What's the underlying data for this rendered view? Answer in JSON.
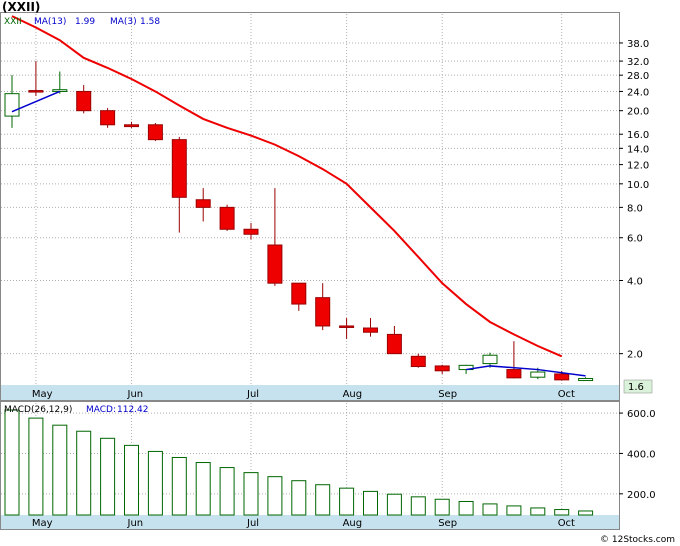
{
  "title": "(XXII)",
  "watermark": "© 12Stocks.com",
  "colors": {
    "down": "#ee0000",
    "up": "#ffffff",
    "ma13": "#ee0000",
    "ma3": "#0000cc",
    "macd_bar": "#006600",
    "axis_band": "#c6e2ee",
    "grid": "#b0b0b0"
  },
  "chart_data": [
    {
      "type": "candlestick",
      "ticker": "XXII",
      "legend": [
        {
          "label": "XXII",
          "color": "#006600"
        },
        {
          "label": "MA(13)",
          "value": "1.99",
          "color": "#0000cc"
        },
        {
          "label": "MA(3)",
          "value": "1.58",
          "color": "#0000cc"
        }
      ],
      "y_scale": "log",
      "ylim": [
        1.5,
        50
      ],
      "y_ticks": [
        "38.0",
        "32.0",
        "28.0",
        "24.0",
        "20.0",
        "16.0",
        "14.0",
        "12.0",
        "10.0",
        "8.0",
        "6.0",
        "4.0",
        "2.0"
      ],
      "last_price": "1.6",
      "x_labels": [
        "May",
        "Jun",
        "Jul",
        "Aug",
        "Sep",
        "Oct"
      ],
      "candles": [
        {
          "o": 19.0,
          "h": 28.0,
          "l": 17.0,
          "c": 23.5
        },
        {
          "o": 24.2,
          "h": 32.0,
          "l": 23.0,
          "c": 24.0
        },
        {
          "o": 24.0,
          "h": 29.0,
          "l": 23.5,
          "c": 24.4
        },
        {
          "o": 24.0,
          "h": 25.5,
          "l": 19.5,
          "c": 20.0
        },
        {
          "o": 20.0,
          "h": 20.5,
          "l": 17.0,
          "c": 17.5
        },
        {
          "o": 17.5,
          "h": 18.0,
          "l": 17.0,
          "c": 17.2
        },
        {
          "o": 17.5,
          "h": 17.8,
          "l": 15.0,
          "c": 15.2
        },
        {
          "o": 15.2,
          "h": 15.6,
          "l": 6.3,
          "c": 8.8
        },
        {
          "o": 8.6,
          "h": 9.6,
          "l": 7.0,
          "c": 8.0
        },
        {
          "o": 8.0,
          "h": 8.2,
          "l": 6.4,
          "c": 6.5
        },
        {
          "o": 6.5,
          "h": 6.9,
          "l": 5.9,
          "c": 6.2
        },
        {
          "o": 5.6,
          "h": 9.6,
          "l": 3.8,
          "c": 3.9
        },
        {
          "o": 3.9,
          "h": 3.9,
          "l": 3.0,
          "c": 3.2
        },
        {
          "o": 3.4,
          "h": 3.9,
          "l": 2.5,
          "c": 2.6
        },
        {
          "o": 2.6,
          "h": 2.8,
          "l": 2.3,
          "c": 2.57
        },
        {
          "o": 2.55,
          "h": 2.8,
          "l": 2.35,
          "c": 2.45
        },
        {
          "o": 2.4,
          "h": 2.6,
          "l": 2.0,
          "c": 2.0
        },
        {
          "o": 1.95,
          "h": 2.0,
          "l": 1.75,
          "c": 1.77
        },
        {
          "o": 1.78,
          "h": 1.8,
          "l": 1.65,
          "c": 1.7
        },
        {
          "o": 1.72,
          "h": 1.8,
          "l": 1.65,
          "c": 1.79
        },
        {
          "o": 1.82,
          "h": 2.02,
          "l": 1.75,
          "c": 1.97
        },
        {
          "o": 1.72,
          "h": 2.25,
          "l": 1.58,
          "c": 1.59
        },
        {
          "o": 1.6,
          "h": 1.75,
          "l": 1.57,
          "c": 1.68
        },
        {
          "o": 1.65,
          "h": 1.7,
          "l": 1.55,
          "c": 1.56
        },
        {
          "o": 1.55,
          "h": 1.6,
          "l": 1.55,
          "c": 1.58
        }
      ],
      "ma13": [
        49,
        44,
        39,
        33,
        30,
        27,
        24,
        21,
        18.5,
        17,
        15.8,
        14.5,
        13,
        11.5,
        10,
        8,
        6.4,
        5,
        3.9,
        3.2,
        2.7,
        2.4,
        2.15,
        1.95
      ],
      "ma3": [
        {
          "i": 0,
          "v": 19.8
        },
        {
          "i": 2,
          "v": 24.0
        }
      ],
      "ma3_tail": [
        {
          "i": 19,
          "v": 1.72
        },
        {
          "i": 20,
          "v": 1.78
        },
        {
          "i": 22,
          "v": 1.72
        },
        {
          "i": 24,
          "v": 1.62
        }
      ]
    },
    {
      "type": "bar",
      "title": "MACD(26,12,9)",
      "legend": [
        {
          "label": "MACD(26,12,9)",
          "color": "#0000cc"
        },
        {
          "label": "MACD:",
          "value": "112.42",
          "color": "#0000cc"
        }
      ],
      "ylim": [
        100,
        640
      ],
      "y_ticks": [
        "600.0",
        "400.0",
        "200.0"
      ],
      "values": [
        615,
        575,
        540,
        510,
        475,
        440,
        410,
        380,
        355,
        330,
        305,
        285,
        265,
        245,
        228,
        212,
        198,
        185,
        173,
        162,
        150,
        140,
        130,
        122,
        115
      ],
      "x_labels": [
        "May",
        "Jun",
        "Jul",
        "Aug",
        "Sep",
        "Oct"
      ]
    }
  ]
}
